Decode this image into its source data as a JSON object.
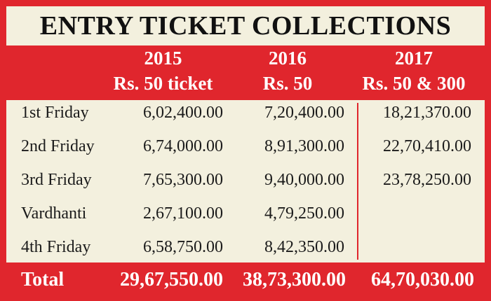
{
  "title": "ENTRY TICKET COLLECTIONS",
  "columns": [
    {
      "year": "2015",
      "price": "Rs. 50 ticket"
    },
    {
      "year": "2016",
      "price": "Rs. 50"
    },
    {
      "year": "2017",
      "price": "Rs. 50 & 300"
    }
  ],
  "rows": [
    {
      "label": "1st Friday",
      "v2015": "6,02,400.00",
      "v2016": "7,20,400.00",
      "v2017": "18,21,370.00"
    },
    {
      "label": "2nd Friday",
      "v2015": "6,74,000.00",
      "v2016": "8,91,300.00",
      "v2017": "22,70,410.00"
    },
    {
      "label": "3rd Friday",
      "v2015": "7,65,300.00",
      "v2016": "9,40,000.00",
      "v2017": "23,78,250.00"
    },
    {
      "label": "Vardhanti",
      "v2015": "2,67,100.00",
      "v2016": "4,79,250.00",
      "v2017": ""
    },
    {
      "label": "4th Friday",
      "v2015": "6,58,750.00",
      "v2016": "8,42,350.00",
      "v2017": ""
    }
  ],
  "total": {
    "label": "Total",
    "v2015": "29,67,550.00",
    "v2016": "38,73,300.00",
    "v2017": "64,70,030.00"
  },
  "colors": {
    "accent_red": "#e0262d",
    "panel": "#f3f0de"
  }
}
